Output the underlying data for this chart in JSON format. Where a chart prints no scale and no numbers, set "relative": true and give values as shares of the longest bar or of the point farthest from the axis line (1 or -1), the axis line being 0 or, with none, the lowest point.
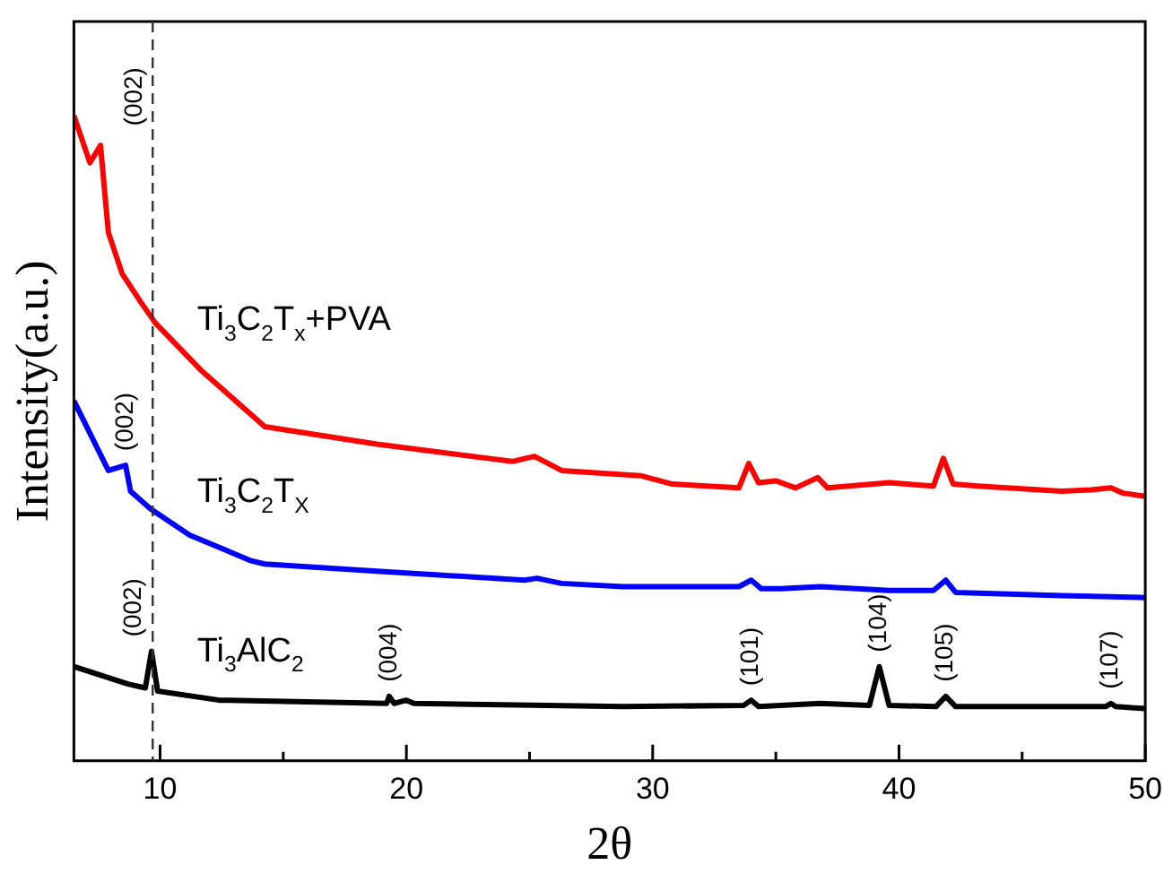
{
  "chart_data": {
    "type": "line",
    "relative": true,
    "xlabel": "2θ",
    "ylabel": "Intensity(a.u.)",
    "xlim": [
      6.5,
      50
    ],
    "xticks": [
      10,
      {
        "value": 15,
        "label": null
      },
      20,
      {
        "value": 25,
        "label": null
      },
      30,
      {
        "value": 35,
        "label": null
      },
      40,
      {
        "value": 45,
        "label": null
      },
      50
    ],
    "grid": false,
    "legend": false,
    "marker": "none",
    "line_style": "solid",
    "ref_lines": [
      {
        "axis": "x",
        "value": 9.7,
        "line_style": "dashed",
        "color": "#333333"
      }
    ],
    "annotations": [
      {
        "text": "(002)",
        "x": 9.7,
        "y": 0.962
      },
      {
        "text": "(002)",
        "x": 8.6,
        "y": 0.458
      },
      {
        "text": "(002)",
        "x": 9.65,
        "y": 0.17
      },
      {
        "text": "(004)",
        "x": 19.3,
        "y": 0.1
      },
      {
        "text": "(101)",
        "x": 34.0,
        "y": 0.094
      },
      {
        "text": "(104)",
        "x": 39.2,
        "y": 0.146
      },
      {
        "text": "(105)",
        "x": 41.9,
        "y": 0.1
      },
      {
        "text": "(107)",
        "x": 48.6,
        "y": 0.089
      }
    ],
    "series": [
      {
        "name": "Ti$_{3}$C$_{2}$T$_{x}$+PVA",
        "color": "#ff0000",
        "x": [
          6.5,
          7.15,
          7.58,
          7.9,
          8.46,
          9.2,
          9.8,
          11.7,
          14.25,
          18.8,
          24.3,
          25.2,
          26.3,
          29.5,
          30.8,
          33.5,
          33.9,
          34.3,
          35.0,
          35.8,
          36.7,
          37.1,
          39.6,
          41.4,
          41.8,
          42.2,
          43.2,
          46.6,
          47.8,
          48.6,
          49.1,
          50
        ],
        "values": [
          1.0,
          0.927,
          0.954,
          0.819,
          0.755,
          0.712,
          0.679,
          0.604,
          0.518,
          0.491,
          0.464,
          0.472,
          0.45,
          0.442,
          0.429,
          0.423,
          0.461,
          0.431,
          0.434,
          0.423,
          0.439,
          0.423,
          0.431,
          0.426,
          0.469,
          0.429,
          0.426,
          0.418,
          0.42,
          0.423,
          0.415,
          0.41
        ]
      },
      {
        "name": "Ti$_{3}$C$_{2}$T$_{X}$",
        "color": "#0000ff",
        "x": [
          6.5,
          7.9,
          8.6,
          8.8,
          9.6,
          11.2,
          13.7,
          14.25,
          18.8,
          24.8,
          25.3,
          26.3,
          28.8,
          33.5,
          34.0,
          34.4,
          35.2,
          36.8,
          39.6,
          41.4,
          41.9,
          42.3,
          46.6,
          50
        ],
        "values": [
          0.558,
          0.45,
          0.458,
          0.418,
          0.391,
          0.35,
          0.31,
          0.305,
          0.294,
          0.28,
          0.283,
          0.275,
          0.27,
          0.27,
          0.28,
          0.267,
          0.267,
          0.27,
          0.264,
          0.264,
          0.28,
          0.261,
          0.256,
          0.253
        ]
      },
      {
        "name": "Ti$_{3}$AlC$_{2}$",
        "color": "#000000",
        "x": [
          6.5,
          8.7,
          9.4,
          9.65,
          9.9,
          12.4,
          19.2,
          19.3,
          19.5,
          20.0,
          20.3,
          28.8,
          33.7,
          34.0,
          34.3,
          36.8,
          38.8,
          39.2,
          39.6,
          41.5,
          41.9,
          42.3,
          48.4,
          48.6,
          48.8,
          50
        ],
        "values": [
          0.146,
          0.119,
          0.113,
          0.17,
          0.108,
          0.094,
          0.089,
          0.1,
          0.089,
          0.094,
          0.089,
          0.084,
          0.086,
          0.094,
          0.084,
          0.089,
          0.086,
          0.146,
          0.086,
          0.084,
          0.1,
          0.084,
          0.084,
          0.089,
          0.084,
          0.081
        ]
      }
    ]
  }
}
